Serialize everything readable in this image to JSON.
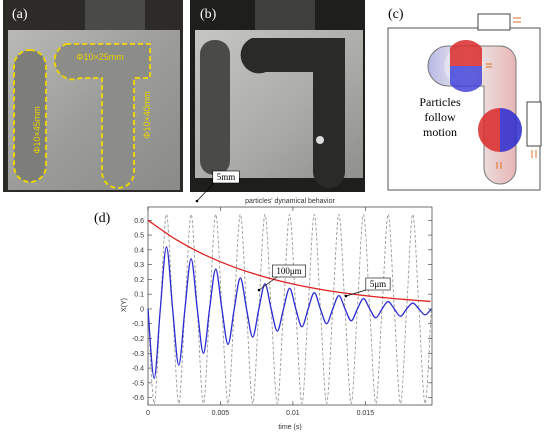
{
  "panels": {
    "a": {
      "label": "(a)",
      "dims": [
        "Φ10×25mm",
        "Φ10×45mm",
        "Φ10×40mm"
      ]
    },
    "b": {
      "label": "(b)"
    },
    "c": {
      "label": "(c)",
      "text": [
        "Particles",
        "follow",
        "motion"
      ]
    },
    "d": {
      "label": "(d)"
    }
  },
  "chart_data": {
    "type": "line",
    "title": "particles' dynamical behavior",
    "x_label": "time (s)",
    "y_label": "X(Y)",
    "xlim": [
      0,
      0.0196
    ],
    "ylim": [
      -0.65,
      0.69
    ],
    "xticks": [
      0,
      0.005,
      0.01,
      0.015
    ],
    "yticks": [
      -0.6,
      -0.5,
      -0.4,
      -0.3,
      -0.2,
      -0.1,
      0,
      0.1,
      0.2,
      0.3,
      0.4,
      0.5,
      0.6
    ],
    "grid": false,
    "series": [
      {
        "name": "5mm",
        "color": "#9a9a9a",
        "dashed": true,
        "x": [
          0,
          0.000425,
          0.00085,
          0.001275,
          0.0017,
          0.002125,
          0.00255,
          0.002975,
          0.0034,
          0.003825,
          0.00425,
          0.004675,
          0.0051,
          0.005525,
          0.00595,
          0.006375,
          0.0068,
          0.007225,
          0.00765,
          0.008075,
          0.0085,
          0.008925,
          0.00935,
          0.009775,
          0.0102,
          0.010625,
          0.01105,
          0.011475,
          0.0119,
          0.012325,
          0.01275,
          0.013175,
          0.0136,
          0.014025,
          0.01445,
          0.014875,
          0.0153,
          0.015725,
          0.01615,
          0.016575,
          0.017,
          0.017425,
          0.01785,
          0.018275,
          0.0187,
          0.019125,
          0.01955
        ],
        "values": [
          0,
          -0.64,
          0,
          0.64,
          0,
          -0.64,
          0,
          0.64,
          0,
          -0.64,
          0,
          0.64,
          0,
          -0.64,
          0,
          0.64,
          0,
          -0.64,
          0,
          0.64,
          0,
          -0.64,
          0,
          0.64,
          0,
          -0.64,
          0,
          0.64,
          0,
          -0.64,
          0,
          0.64,
          0,
          -0.64,
          0,
          0.64,
          0,
          -0.64,
          0,
          0.64,
          0,
          -0.64,
          0,
          0.64,
          0,
          -0.64,
          0
        ]
      },
      {
        "name": "100μm",
        "color": "#2b2bd4",
        "dashed": false,
        "x": [
          0,
          0.000425,
          0.00085,
          0.001275,
          0.0017,
          0.002125,
          0.00255,
          0.002975,
          0.0034,
          0.003825,
          0.00425,
          0.004675,
          0.0051,
          0.005525,
          0.00595,
          0.006375,
          0.0068,
          0.007225,
          0.00765,
          0.008075,
          0.0085,
          0.008925,
          0.00935,
          0.009775,
          0.0102,
          0.010625,
          0.01105,
          0.011475,
          0.0119,
          0.012325,
          0.01275,
          0.013175,
          0.0136,
          0.014025,
          0.01445,
          0.014875,
          0.0153,
          0.015725,
          0.01615,
          0.016575,
          0.017,
          0.017425,
          0.01785,
          0.018275,
          0.0187,
          0.019125,
          0.01955
        ],
        "values": [
          0,
          -0.47,
          0,
          0.42,
          0,
          -0.38,
          0,
          0.34,
          0,
          -0.3,
          0,
          0.27,
          0,
          -0.24,
          0,
          0.21,
          0,
          -0.19,
          0,
          0.17,
          0,
          -0.15,
          0,
          0.14,
          0,
          -0.12,
          0,
          0.11,
          0,
          -0.1,
          0,
          0.09,
          0,
          -0.08,
          0,
          0.07,
          0,
          -0.06,
          0,
          0.05,
          0,
          -0.05,
          0,
          0.04,
          0,
          -0.04,
          0
        ]
      },
      {
        "name": "5μm",
        "color": "#e02020",
        "dashed": false,
        "x": [
          0,
          0.002,
          0.004,
          0.006,
          0.008,
          0.01,
          0.012,
          0.014,
          0.016,
          0.018,
          0.0195
        ],
        "values": [
          0.6,
          0.466,
          0.362,
          0.281,
          0.218,
          0.169,
          0.131,
          0.102,
          0.079,
          0.062,
          0.051
        ]
      }
    ]
  }
}
